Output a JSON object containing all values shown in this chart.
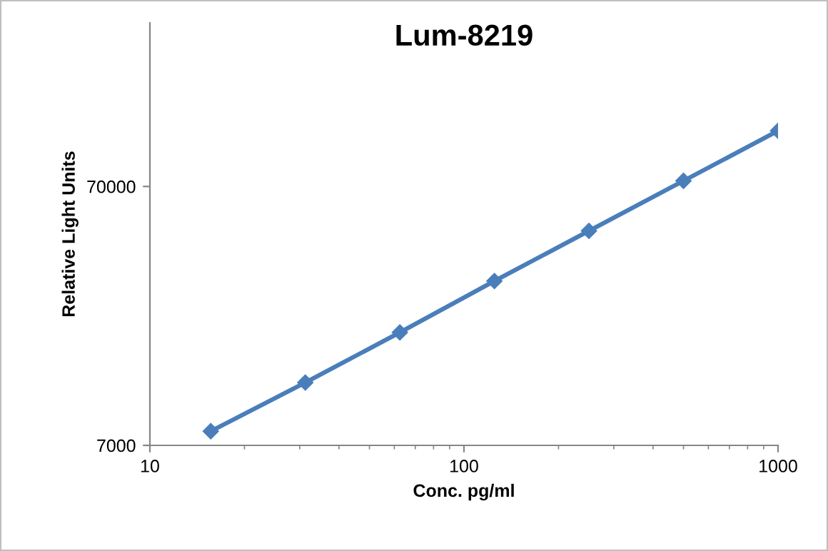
{
  "chart_data": {
    "type": "line",
    "title": "Lum-8219",
    "xlabel": "Conc. pg/ml",
    "ylabel": "Relative Light Units",
    "log": "xy",
    "x": [
      15.625,
      31.25,
      62.5,
      125,
      250,
      500,
      1000
    ],
    "series": [
      {
        "color": "#4a7ebb",
        "values": [
          7940,
          12240,
          19110,
          30200,
          47150,
          73600,
          114800
        ]
      }
    ],
    "xlim": [
      10,
      1000
    ],
    "xticks": [
      10,
      100,
      1000
    ],
    "ylim": [
      7000,
      300000
    ],
    "yticks": [
      7000,
      70000
    ],
    "marker": "diamond",
    "line_style": "solid",
    "grid": false,
    "legend": false
  }
}
